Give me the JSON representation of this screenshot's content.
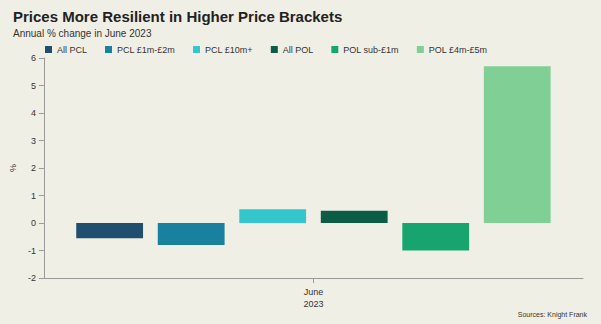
{
  "chart_data": {
    "type": "bar",
    "title": "Prices More Resilient in Higher Price Brackets",
    "subtitle": "Annual % change in June 2023",
    "y_label": "%",
    "annotation": "Sources: Knight Frank",
    "categories": [
      "June 2023"
    ],
    "series": [
      {
        "name": "All PCL",
        "color": "#1f4e6e",
        "values": [
          -0.55
        ]
      },
      {
        "name": "PCL £1m-£2m",
        "color": "#1a80a0",
        "values": [
          -0.8
        ]
      },
      {
        "name": "PCL £10m+",
        "color": "#33c6cc",
        "values": [
          0.5
        ]
      },
      {
        "name": "All POL",
        "color": "#0b5e45",
        "values": [
          0.45
        ]
      },
      {
        "name": "POL sub-£1m",
        "color": "#18a46e",
        "values": [
          -1.0
        ]
      },
      {
        "name": "POL £4m-£5m",
        "color": "#80d096",
        "values": [
          5.7
        ]
      }
    ],
    "ylim": [
      -2,
      6
    ],
    "yticks": [
      -2,
      -1,
      0,
      1,
      2,
      3,
      4,
      5,
      6
    ],
    "grid": false,
    "legend": "top-left"
  }
}
